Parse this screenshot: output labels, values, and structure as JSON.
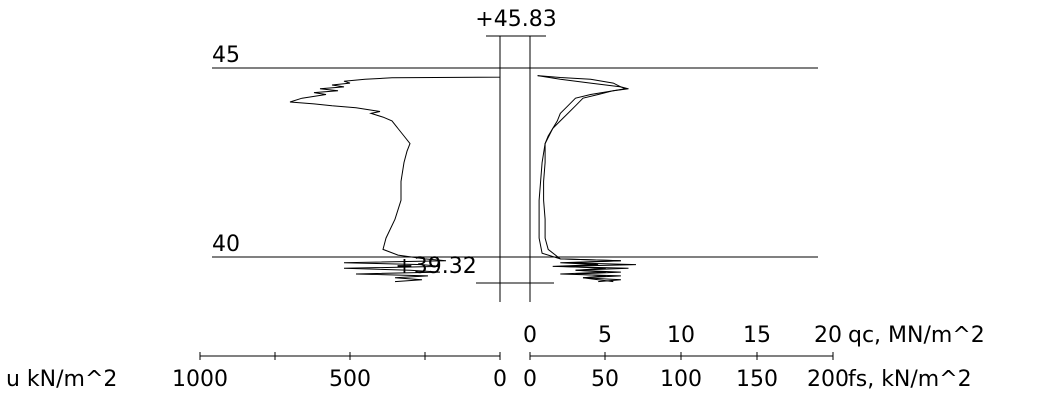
{
  "chart_data": {
    "type": "line",
    "top_elevation_label": "+45.83",
    "bottom_elevation_label": "+39.32",
    "depth_levels": [
      {
        "elevation": 45,
        "label": "45"
      },
      {
        "elevation": 40,
        "label": "40"
      }
    ],
    "y_range": [
      39.0,
      46.0
    ],
    "qc_axis": {
      "ticks": [
        "0",
        "5",
        "10",
        "15",
        "20"
      ],
      "label": "qc, MN/m^2",
      "range": [
        0,
        20
      ]
    },
    "fs_axis": {
      "ticks": [
        "0",
        "50",
        "100",
        "150",
        "200"
      ],
      "label": "fs, kN/m^2",
      "range": [
        0,
        200
      ]
    },
    "u_axis": {
      "ticks": [
        "1000",
        "500",
        "0"
      ],
      "label": "u kN/m^2",
      "range": [
        0,
        1000
      ]
    },
    "series": [
      {
        "key": "u",
        "points": [
          [
            45.83,
            0
          ],
          [
            44.76,
            0
          ],
          [
            44.74,
            360
          ],
          [
            44.7,
            450
          ],
          [
            44.65,
            520
          ],
          [
            44.6,
            500
          ],
          [
            44.55,
            560
          ],
          [
            44.5,
            520
          ],
          [
            44.45,
            600
          ],
          [
            44.4,
            540
          ],
          [
            44.35,
            620
          ],
          [
            44.3,
            580
          ],
          [
            44.2,
            660
          ],
          [
            44.1,
            700
          ],
          [
            44.05,
            620
          ],
          [
            44.0,
            560
          ],
          [
            43.95,
            480
          ],
          [
            43.9,
            440
          ],
          [
            43.85,
            400
          ],
          [
            43.8,
            430
          ],
          [
            43.7,
            390
          ],
          [
            43.6,
            360
          ],
          [
            43.4,
            340
          ],
          [
            43.2,
            320
          ],
          [
            43.0,
            300
          ],
          [
            42.8,
            310
          ],
          [
            42.5,
            320
          ],
          [
            42.0,
            330
          ],
          [
            41.5,
            330
          ],
          [
            41.0,
            350
          ],
          [
            40.5,
            380
          ],
          [
            40.2,
            390
          ],
          [
            40.05,
            340
          ],
          [
            39.95,
            250
          ],
          [
            39.9,
            180
          ],
          [
            39.85,
            520
          ],
          [
            39.8,
            260
          ],
          [
            39.75,
            200
          ],
          [
            39.7,
            520
          ],
          [
            39.65,
            300
          ],
          [
            39.6,
            200
          ],
          [
            39.55,
            480
          ],
          [
            39.5,
            240
          ],
          [
            39.45,
            350
          ],
          [
            39.4,
            260
          ],
          [
            39.35,
            350
          ]
        ]
      },
      {
        "key": "qc",
        "points": [
          [
            44.8,
            0.5
          ],
          [
            44.75,
            2.0
          ],
          [
            44.7,
            4.0
          ],
          [
            44.6,
            5.5
          ],
          [
            44.5,
            6.0
          ],
          [
            44.45,
            6.3
          ],
          [
            44.4,
            5.5
          ],
          [
            44.3,
            4.0
          ],
          [
            44.2,
            3.0
          ],
          [
            44.0,
            2.5
          ],
          [
            43.8,
            2.0
          ],
          [
            43.6,
            1.8
          ],
          [
            43.4,
            1.5
          ],
          [
            43.0,
            1.0
          ],
          [
            42.5,
            0.8
          ],
          [
            42.0,
            0.7
          ],
          [
            41.5,
            0.6
          ],
          [
            41.0,
            0.6
          ],
          [
            40.5,
            0.6
          ],
          [
            40.1,
            0.8
          ],
          [
            39.95,
            2.0
          ],
          [
            39.9,
            6.0
          ],
          [
            39.85,
            2.0
          ],
          [
            39.8,
            4.5
          ],
          [
            39.75,
            1.5
          ],
          [
            39.7,
            6.5
          ],
          [
            39.65,
            3.0
          ],
          [
            39.6,
            5.0
          ],
          [
            39.55,
            2.0
          ],
          [
            39.5,
            6.0
          ],
          [
            39.45,
            3.5
          ],
          [
            39.4,
            4.5
          ],
          [
            39.35,
            5.5
          ]
        ]
      },
      {
        "key": "fs",
        "points": [
          [
            44.8,
            5
          ],
          [
            44.7,
            20
          ],
          [
            44.6,
            40
          ],
          [
            44.5,
            60
          ],
          [
            44.45,
            65
          ],
          [
            44.4,
            55
          ],
          [
            44.3,
            45
          ],
          [
            44.2,
            35
          ],
          [
            44.0,
            30
          ],
          [
            43.8,
            25
          ],
          [
            43.6,
            20
          ],
          [
            43.4,
            15
          ],
          [
            43.2,
            12
          ],
          [
            43.0,
            10
          ],
          [
            42.5,
            10
          ],
          [
            42.0,
            9
          ],
          [
            41.5,
            9
          ],
          [
            41.0,
            10
          ],
          [
            40.5,
            10
          ],
          [
            40.2,
            12
          ],
          [
            39.95,
            20
          ],
          [
            39.9,
            60
          ],
          [
            39.85,
            25
          ],
          [
            39.8,
            70
          ],
          [
            39.75,
            20
          ],
          [
            39.7,
            50
          ],
          [
            39.65,
            30
          ],
          [
            39.6,
            60
          ],
          [
            39.55,
            30
          ],
          [
            39.5,
            50
          ],
          [
            39.45,
            35
          ],
          [
            39.4,
            60
          ],
          [
            39.35,
            45
          ]
        ]
      }
    ]
  }
}
